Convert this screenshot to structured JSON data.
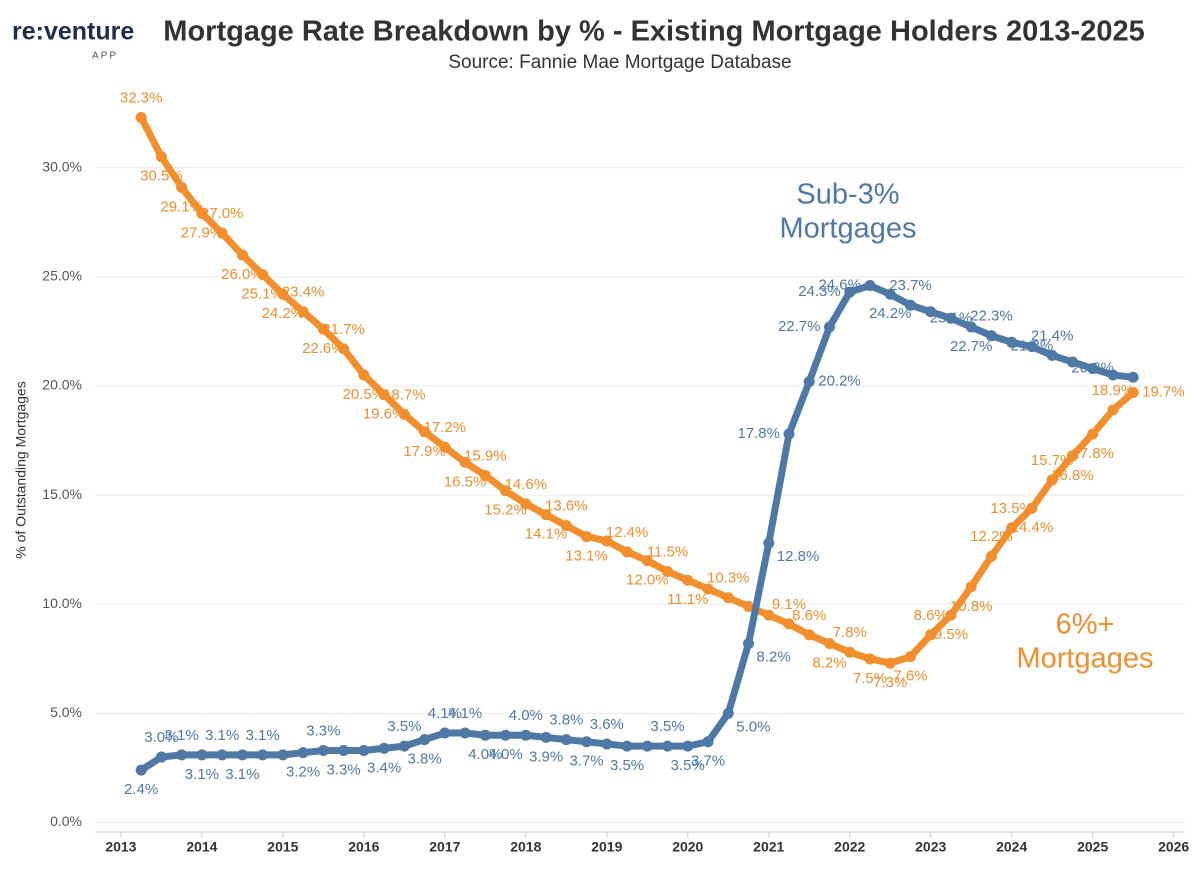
{
  "logo": {
    "name": "re:venture",
    "sub": "APP"
  },
  "chart_data": {
    "type": "line",
    "title": "Mortgage Rate Breakdown by % - Existing Mortgage Holders 2013-2025",
    "subtitle": "Source: Fannie Mae Mortgage Database",
    "y_label": "% of Outstanding Mortgages",
    "annotations": [
      {
        "text": "Sub-3% Mortgages",
        "lines": [
          "Sub-3%",
          "Mortgages"
        ],
        "color": "#4e79a7"
      },
      {
        "text": "6%+ Mortgages",
        "lines": [
          "6%+",
          "Mortgages"
        ],
        "color": "#f28e2b"
      }
    ],
    "x": [
      2013.25,
      2013.5,
      2013.75,
      2014,
      2014.25,
      2014.5,
      2014.75,
      2015,
      2015.25,
      2015.5,
      2015.75,
      2016,
      2016.25,
      2016.5,
      2016.75,
      2017,
      2017.25,
      2017.5,
      2017.75,
      2018,
      2018.25,
      2018.5,
      2018.75,
      2019,
      2019.25,
      2019.5,
      2019.75,
      2020,
      2020.25,
      2020.5,
      2020.75,
      2021,
      2021.25,
      2021.5,
      2021.75,
      2022,
      2022.25,
      2022.5,
      2022.75,
      2023,
      2023.25,
      2023.5,
      2023.75,
      2024,
      2024.25,
      2024.5,
      2024.75,
      2025,
      2025.25,
      2025.5
    ],
    "xlim": [
      2012.68,
      2026.14
    ],
    "xticks": [
      2013,
      2014,
      2015,
      2016,
      2017,
      2018,
      2019,
      2020,
      2021,
      2022,
      2023,
      2024,
      2025,
      2026
    ],
    "ylim": [
      -0.8,
      33.1
    ],
    "yticks": [
      {
        "value": 0,
        "label": "0.0%"
      },
      {
        "value": 5,
        "label": "5.0%"
      },
      {
        "value": 10,
        "label": "10.0%"
      },
      {
        "value": 15,
        "label": "15.0%"
      },
      {
        "value": 20,
        "label": "20.0%"
      },
      {
        "value": 25,
        "label": "25.0%"
      },
      {
        "value": 30,
        "label": "30.0%"
      }
    ],
    "grid": true,
    "series": [
      {
        "name": "6%+ Mortgages",
        "color": "#f28e2b",
        "values": [
          32.3,
          30.5,
          29.1,
          27.9,
          27.0,
          26.0,
          25.1,
          24.2,
          23.4,
          22.6,
          21.7,
          20.5,
          19.6,
          18.7,
          17.9,
          17.2,
          16.5,
          15.9,
          15.2,
          14.6,
          14.1,
          13.6,
          13.1,
          12.9,
          12.4,
          12.0,
          11.5,
          11.1,
          10.7,
          10.3,
          9.9,
          9.5,
          9.1,
          8.6,
          8.2,
          7.8,
          7.5,
          7.3,
          7.6,
          8.6,
          9.5,
          10.8,
          12.2,
          13.5,
          14.4,
          15.7,
          16.8,
          17.8,
          18.9,
          19.7
        ],
        "value_labels": [
          "32.3%",
          "30.5%",
          "29.1%",
          "27.9%",
          "27.0%",
          "26.0%",
          "25.1%",
          "24.2%",
          "23.4%",
          "22.6%",
          "21.7%",
          "20.5%",
          "19.6%",
          "18.7%",
          "17.9%",
          "17.2%",
          "16.5%",
          "15.9%",
          "15.2%",
          "14.6%",
          "14.1%",
          "13.6%",
          "13.1%",
          null,
          "12.4%",
          "12.0%",
          "11.5%",
          "11.1%",
          null,
          "10.3%",
          null,
          null,
          "9.1%",
          "8.6%",
          "8.2%",
          "7.8%",
          "7.5%",
          "7.3%",
          "7.6%",
          "8.6%",
          "9.5%",
          "10.8%",
          "12.2%",
          "13.5%",
          "14.4%",
          "15.7%",
          "16.8%",
          "17.8%",
          "18.9%",
          "19.7%"
        ]
      },
      {
        "name": "Sub-3% Mortgages",
        "color": "#4e79a7",
        "values": [
          2.4,
          3.0,
          3.1,
          3.1,
          3.1,
          3.1,
          3.1,
          3.1,
          3.2,
          3.3,
          3.3,
          3.3,
          3.4,
          3.5,
          3.8,
          4.1,
          4.1,
          4.0,
          4.0,
          4.0,
          3.9,
          3.8,
          3.7,
          3.6,
          3.5,
          3.5,
          3.5,
          3.5,
          3.7,
          5.0,
          8.2,
          12.8,
          17.8,
          20.2,
          22.7,
          24.3,
          24.6,
          24.2,
          23.7,
          23.4,
          23.1,
          22.7,
          22.3,
          22.0,
          21.8,
          21.4,
          21.1,
          20.8,
          20.5,
          20.4
        ],
        "value_labels": [
          "2.4%",
          "3.0%",
          "3.1%",
          "3.1%",
          "3.1%",
          "3.1%",
          "3.1%",
          null,
          "3.2%",
          "3.3%",
          "3.3%",
          null,
          "3.4%",
          "3.5%",
          "3.8%",
          "4.1%",
          "4.1%",
          "4.0%",
          "4.0%",
          "4.0%",
          "3.9%",
          "3.8%",
          "3.7%",
          "3.6%",
          "3.5%",
          null,
          "3.5%",
          "3.5%",
          "3.7%",
          "5.0%",
          "8.2%",
          "12.8%",
          "17.8%",
          "20.2%",
          "22.7%",
          "24.3%",
          "24.6%",
          "24.2%",
          "23.7%",
          null,
          "23.1%",
          "22.7%",
          "22.3%",
          null,
          "21.8%",
          "21.4%",
          null,
          "20.8%",
          null,
          null
        ]
      }
    ]
  }
}
